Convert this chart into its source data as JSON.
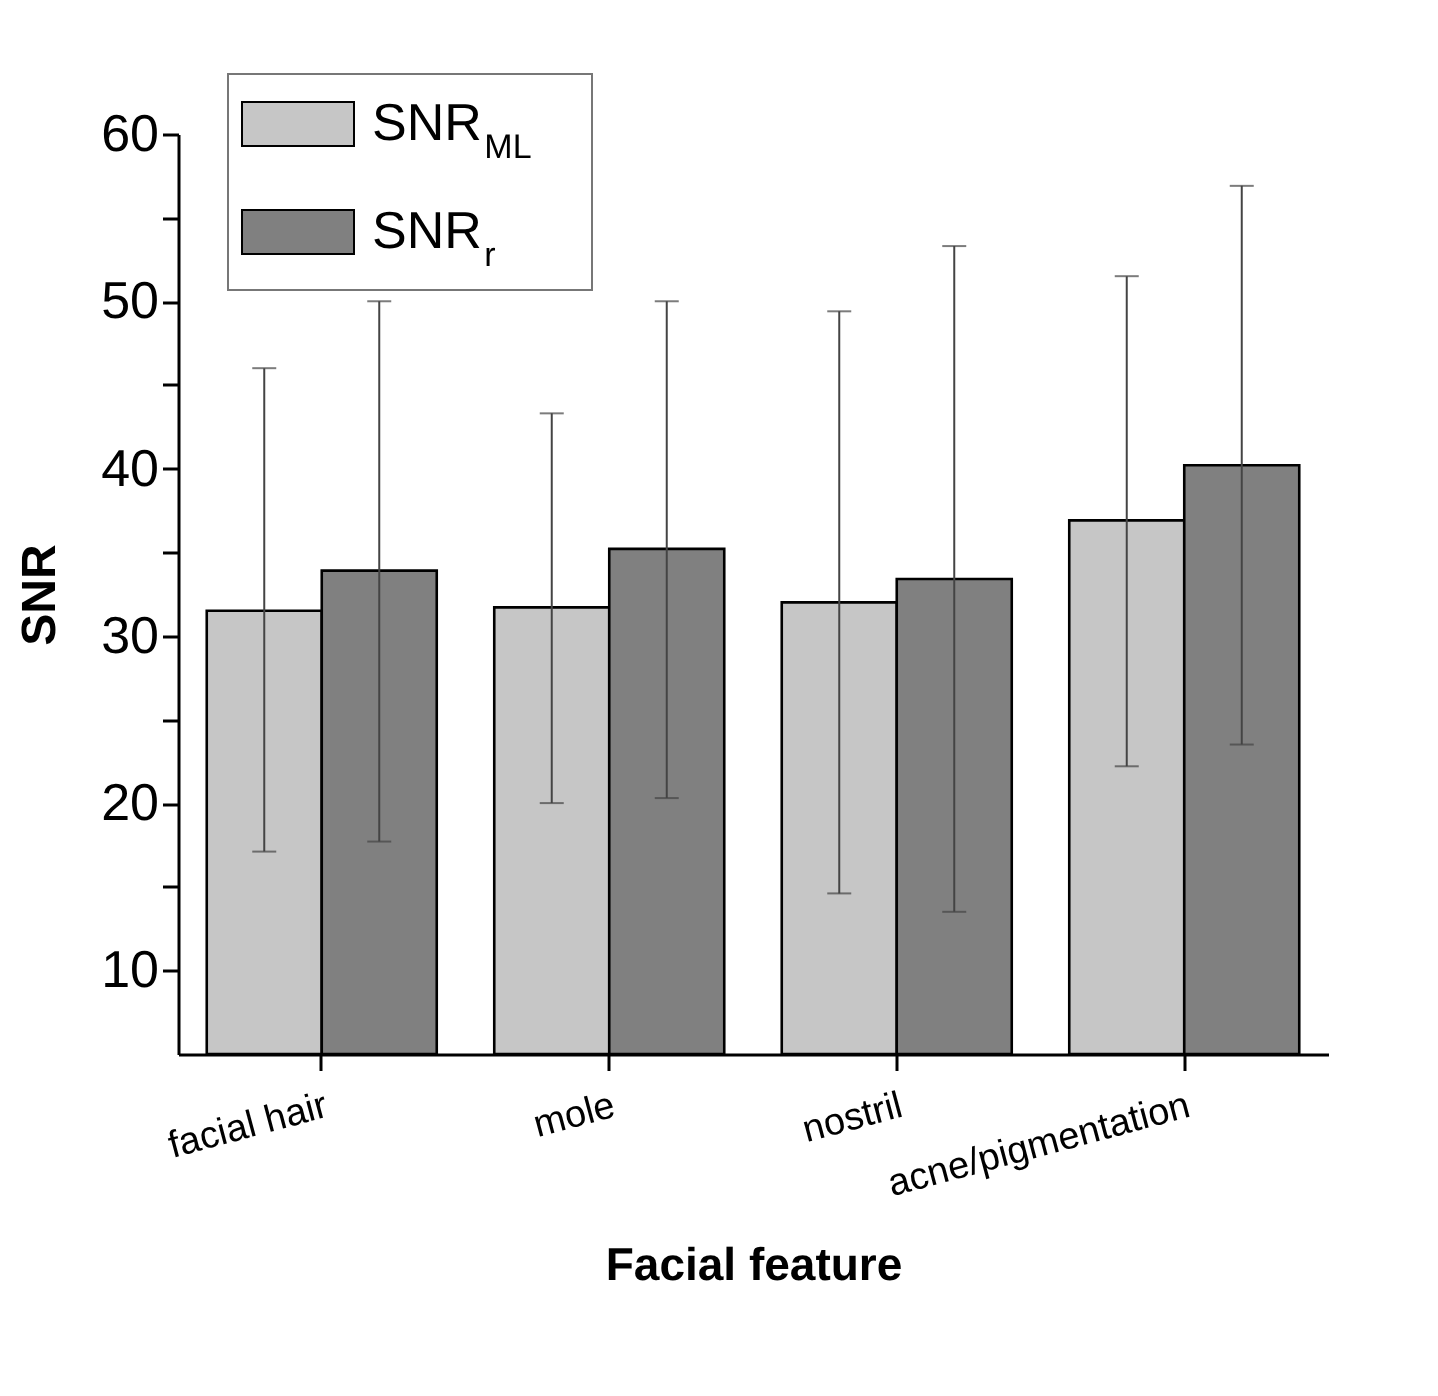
{
  "chart_data": {
    "type": "bar",
    "xlabel": "Facial  feature",
    "ylabel": "SNR",
    "categories": [
      "facial hair",
      "mole",
      "nostril",
      "acne/pigmentation"
    ],
    "series": [
      {
        "name": "SNR$_{ML}$",
        "color": "#c6c6c6",
        "values": [
          31.5,
          31.7,
          32.0,
          36.9
        ],
        "errors": [
          [
            17.1,
            46.0
          ],
          [
            20.0,
            43.3
          ],
          [
            14.6,
            49.4
          ],
          [
            22.2,
            51.5
          ]
        ]
      },
      {
        "name": "SNR$_{r}$",
        "color": "#808080",
        "values": [
          33.9,
          35.2,
          33.4,
          40.2
        ],
        "errors": [
          [
            17.7,
            50.0
          ],
          [
            20.3,
            50.0
          ],
          [
            13.5,
            53.3
          ],
          [
            23.5,
            56.9
          ]
        ]
      }
    ],
    "ylim": [
      5,
      60
    ],
    "yticks": [
      10,
      {
        "value": 15,
        "label": null
      },
      20,
      {
        "value": 25,
        "label": null
      },
      30,
      {
        "value": 35,
        "label": null
      },
      40,
      {
        "value": 45,
        "label": null
      },
      50,
      {
        "value": 55,
        "label": null
      },
      60
    ],
    "grid": false,
    "legend": "top left"
  }
}
